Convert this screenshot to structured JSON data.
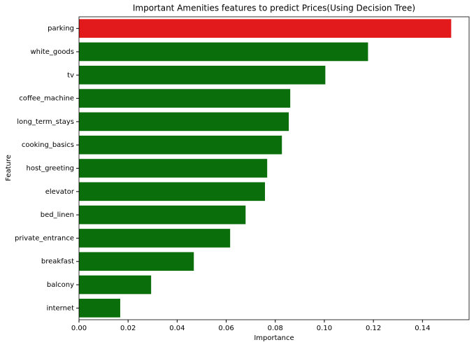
{
  "chart_data": {
    "type": "barh",
    "title": "Important Amenities features to predict Prices(Using Decision Tree)",
    "x_label": "Importance",
    "y_label": "Feature",
    "categories": [
      "parking",
      "white_goods",
      "tv",
      "coffee_machine",
      "long_term_stays",
      "cooking_basics",
      "host_greeting",
      "elevator",
      "bed_linen",
      "private_entrance",
      "breakfast",
      "balcony",
      "internet"
    ],
    "values": [
      0.1517,
      0.1178,
      0.1004,
      0.0861,
      0.0855,
      0.0827,
      0.0767,
      0.0758,
      0.0679,
      0.0616,
      0.0468,
      0.0294,
      0.0168
    ],
    "colors": [
      "#e31a1c",
      "#0a6e0a",
      "#0a6e0a",
      "#0a6e0a",
      "#0a6e0a",
      "#0a6e0a",
      "#0a6e0a",
      "#0a6e0a",
      "#0a6e0a",
      "#0a6e0a",
      "#0a6e0a",
      "#0a6e0a",
      "#0a6e0a"
    ],
    "xlim": [
      0,
      0.159
    ],
    "xticks": [
      {
        "value": 0,
        "label": "0.00"
      },
      {
        "value": 0.02,
        "label": "0.02"
      },
      {
        "value": 0.04,
        "label": "0.04"
      },
      {
        "value": 0.06,
        "label": "0.06"
      },
      {
        "value": 0.08,
        "label": "0.08"
      },
      {
        "value": 0.1,
        "label": "0.10"
      },
      {
        "value": 0.12,
        "label": "0.12"
      },
      {
        "value": 0.14,
        "label": "0.14"
      }
    ],
    "grid": false
  }
}
